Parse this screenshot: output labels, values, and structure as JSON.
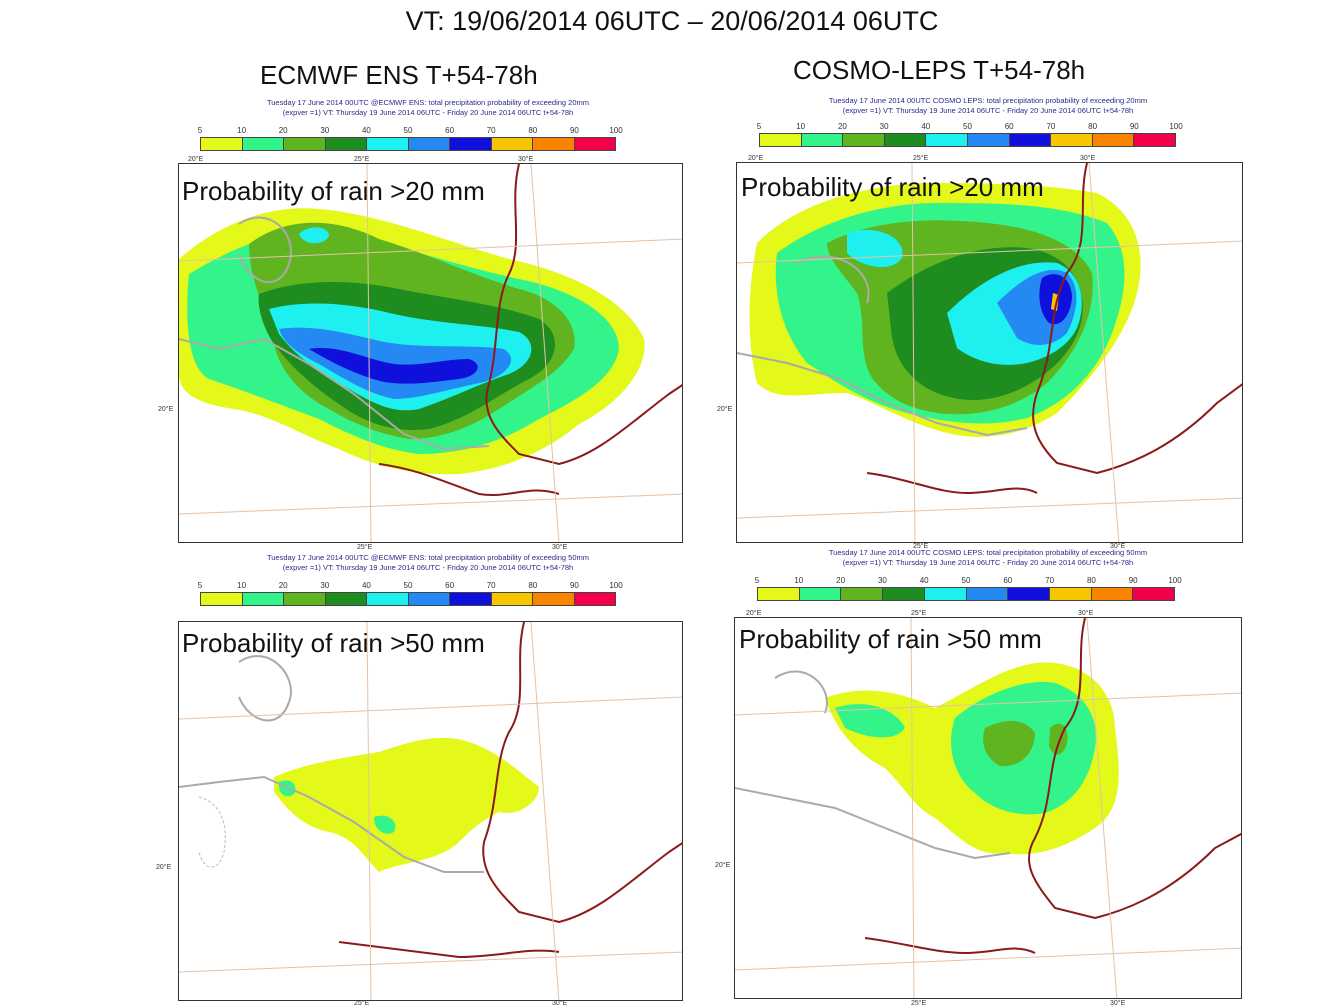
{
  "main_title": "VT: 19/06/2014 06UTC – 20/06/2014 06UTC",
  "columns": [
    {
      "title": "ECMWF ENS T+54-78h"
    },
    {
      "title": "COSMO-LEPS T+54-78h"
    }
  ],
  "colorbar": {
    "ticks": [
      "5",
      "10",
      "20",
      "30",
      "40",
      "50",
      "60",
      "70",
      "80",
      "90",
      "100"
    ],
    "colors": [
      "#e4f81a",
      "#33f48a",
      "#5fb41f",
      "#1f8c1f",
      "#1ef0f0",
      "#2489f2",
      "#1010dd",
      "#f7c600",
      "#f98400",
      "#f4004a"
    ]
  },
  "panels": [
    {
      "id": "ecmwf_20",
      "label": "Probability of rain >20 mm",
      "hdr1": "Tuesday 17 June 2014 00UTC @ECMWF ENS: total precipitation  probability of exceeding 20mm",
      "hdr2": "(expver =1) VT: Thursday 19 June 2014 06UTC - Friday 20 June 2014 06UTC  t+54-78h",
      "axis": {
        "top_left": "20°E",
        "top_mid": "25°E",
        "top_right": "30°E",
        "left": "20°E",
        "bottom_mid": "25°E",
        "bottom_right": "30°E"
      }
    },
    {
      "id": "cosmo_20",
      "label": "Probability of rain >20 mm",
      "hdr1": "Tuesday 17 June 2014 00UTC COSMO LEPS: total precipitation  probability of exceeding 20mm",
      "hdr2": "(expver =1) VT: Thursday 19 June 2014 06UTC - Friday 20 June 2014 06UTC  t+54-78h",
      "axis": {
        "top_left": "20°E",
        "top_mid": "25°E",
        "top_right": "30°E",
        "left": "20°E",
        "bottom_mid": "25°E",
        "bottom_right": "30°E"
      }
    },
    {
      "id": "ecmwf_50",
      "label": "Probability of rain >50 mm",
      "hdr1": "Tuesday 17 June 2014 00UTC @ECMWF ENS: total precipitation  probability of exceeding 50mm",
      "hdr2": "(expver =1) VT: Thursday 19 June 2014 06UTC - Friday 20 June 2014 06UTC  t+54-78h",
      "axis": {
        "top_left": "",
        "top_mid": "",
        "top_right": "",
        "left": "20°E",
        "bottom_mid": "25°E",
        "bottom_right": "30°E"
      }
    },
    {
      "id": "cosmo_50",
      "label": "Probability of rain >50 mm",
      "hdr1": "Tuesday 17 June 2014 00UTC COSMO LEPS: total precipitation  probability of exceeding 50mm",
      "hdr2": "(expver =1) VT: Thursday 19 June 2014 06UTC - Friday 20 June 2014 06UTC  t+54-78h",
      "axis": {
        "top_left": "20°E",
        "top_mid": "25°E",
        "top_right": "30°E",
        "left": "20°E",
        "bottom_mid": "25°E",
        "bottom_right": "30°E"
      }
    }
  ]
}
